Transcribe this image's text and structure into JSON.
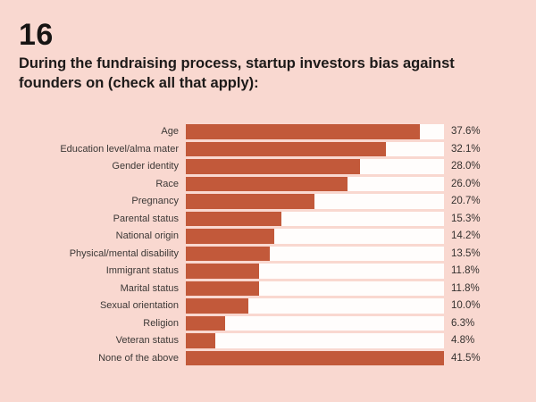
{
  "header": {
    "page_number": "16",
    "title_lines": [
      "During the fundraising process, startup investors bias against",
      "founders on (check all that apply):"
    ]
  },
  "colors": {
    "background": "#f9d8d0",
    "bar_fill": "#c2593a",
    "bar_track": "#fffdfc",
    "text": "#1d1a19"
  },
  "chart_data": {
    "type": "bar",
    "orientation": "horizontal",
    "title": "During the fundraising process, startup investors bias against founders on (check all that apply):",
    "categories": [
      "Age",
      "Education level/alma mater",
      "Gender identity",
      "Race",
      "Pregnancy",
      "Parental status",
      "National origin",
      "Physical/mental disability",
      "Immigrant status",
      "Marital status",
      "Sexual orientation",
      "Religion",
      "Veteran status",
      "None of the above"
    ],
    "values": [
      37.6,
      32.1,
      28.0,
      26.0,
      20.7,
      15.3,
      14.2,
      13.5,
      11.8,
      11.8,
      10.0,
      6.3,
      4.8,
      41.5
    ],
    "value_labels": [
      "37.6%",
      "32.1%",
      "28.0%",
      "26.0%",
      "20.7%",
      "15.3%",
      "14.2%",
      "13.5%",
      "11.8%",
      "11.8%",
      "10.0%",
      "6.3%",
      "4.8%",
      "41.5%"
    ],
    "xlabel": "",
    "ylabel": "",
    "xlim": [
      0,
      41.5
    ],
    "grid": false,
    "legend": false,
    "value_label_position": "right-of-track",
    "track_full_width": true
  }
}
